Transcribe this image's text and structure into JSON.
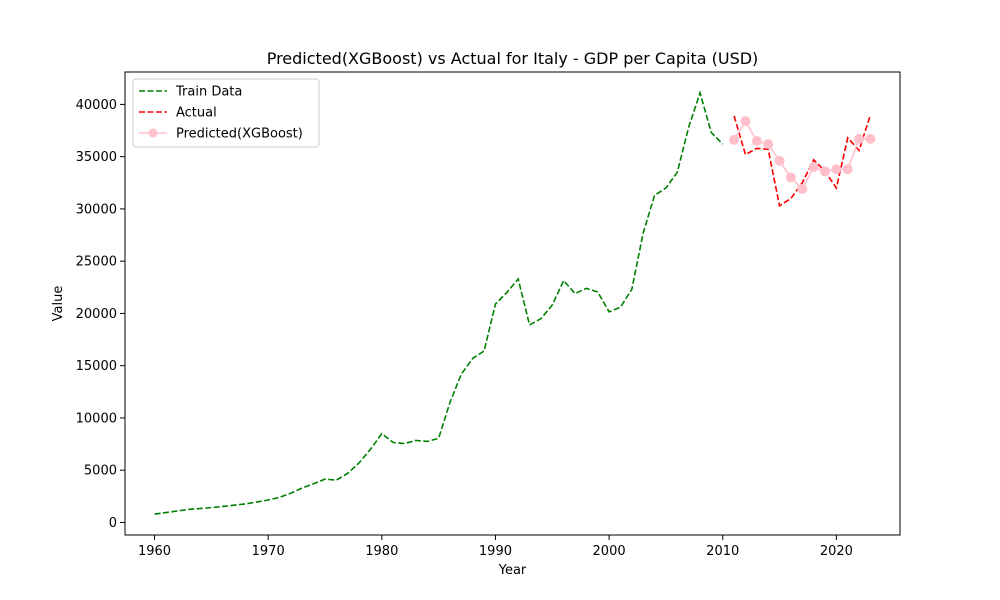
{
  "chart_data": {
    "type": "line",
    "title": "Predicted(XGBoost) vs Actual for Italy - GDP per Capita (USD)",
    "xlabel": "Year",
    "ylabel": "Value",
    "xlim": [
      1957.4,
      2025.6
    ],
    "ylim": [
      -1200,
      43100
    ],
    "xticks": [
      1960,
      1970,
      1980,
      1990,
      2000,
      2010,
      2020
    ],
    "yticks": [
      0,
      5000,
      10000,
      15000,
      20000,
      25000,
      30000,
      35000,
      40000
    ],
    "grid": false,
    "legend_position": "top-left",
    "series": [
      {
        "name": "Train Data",
        "color": "#008000",
        "style": "dashed",
        "marker": "none",
        "x": [
          1960,
          1961,
          1962,
          1963,
          1964,
          1965,
          1966,
          1967,
          1968,
          1969,
          1970,
          1971,
          1972,
          1973,
          1974,
          1975,
          1976,
          1977,
          1978,
          1979,
          1980,
          1981,
          1982,
          1983,
          1984,
          1985,
          1986,
          1987,
          1988,
          1989,
          1990,
          1991,
          1992,
          1993,
          1994,
          1995,
          1996,
          1997,
          1998,
          1999,
          2000,
          2001,
          2002,
          2003,
          2004,
          2005,
          2006,
          2007,
          2008,
          2009,
          2010
        ],
        "y": [
          800,
          950,
          1100,
          1250,
          1330,
          1420,
          1530,
          1650,
          1780,
          1950,
          2150,
          2400,
          2800,
          3300,
          3700,
          4150,
          4050,
          4700,
          5700,
          7000,
          8500,
          7650,
          7550,
          7850,
          7750,
          8050,
          11500,
          14200,
          15700,
          16400,
          20900,
          22000,
          23300,
          18900,
          19500,
          20800,
          23150,
          21900,
          22400,
          22050,
          20150,
          20600,
          22300,
          27700,
          31300,
          32000,
          33500,
          37800,
          41100,
          37300,
          36200
        ]
      },
      {
        "name": "Actual",
        "color": "#ff0000",
        "style": "dashed",
        "marker": "none",
        "x": [
          2011,
          2012,
          2013,
          2014,
          2015,
          2016,
          2017,
          2018,
          2019,
          2020,
          2021,
          2022,
          2023
        ],
        "y": [
          38900,
          35200,
          35800,
          35700,
          30300,
          31000,
          32500,
          34700,
          33600,
          32000,
          36800,
          35600,
          39000
        ]
      },
      {
        "name": "Predicted(XGBoost)",
        "color": "#ffc0cb",
        "style": "solid",
        "marker": "circle",
        "x": [
          2011,
          2012,
          2013,
          2014,
          2015,
          2016,
          2017,
          2018,
          2019,
          2020,
          2021,
          2022,
          2023
        ],
        "y": [
          36600,
          38400,
          36500,
          36200,
          34600,
          33000,
          31900,
          34000,
          33600,
          33800,
          33800,
          36700,
          36700
        ]
      }
    ]
  }
}
